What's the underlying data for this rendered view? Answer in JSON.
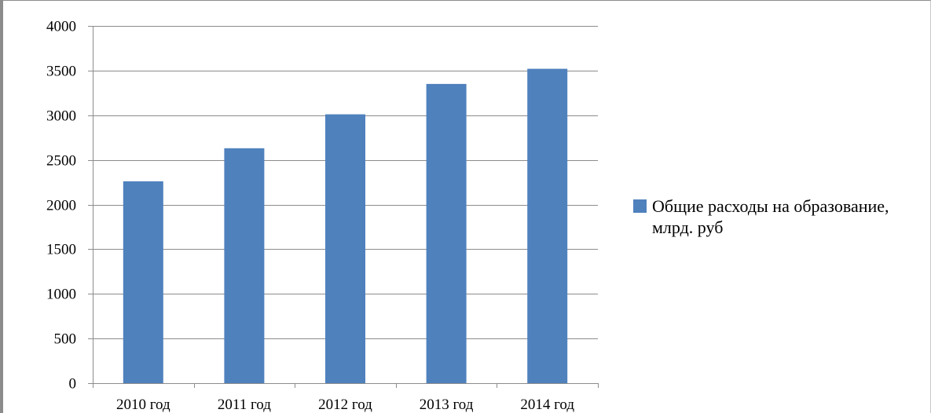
{
  "chart_data": {
    "type": "bar",
    "categories": [
      "2010 год",
      "2011 год",
      "2012 год",
      "2013 год",
      "2014 год"
    ],
    "series": [
      {
        "name": "Общие расходы на образование, млрд. руб",
        "values": [
          2260,
          2630,
          3010,
          3350,
          3520
        ],
        "color": "#4f81bd"
      }
    ],
    "ylim": [
      0,
      4000
    ],
    "yticks": [
      0,
      500,
      1000,
      1500,
      2000,
      2500,
      3000,
      3500,
      4000
    ],
    "title": "",
    "xlabel": "",
    "ylabel": "",
    "grid": true,
    "legend_position": "right"
  }
}
